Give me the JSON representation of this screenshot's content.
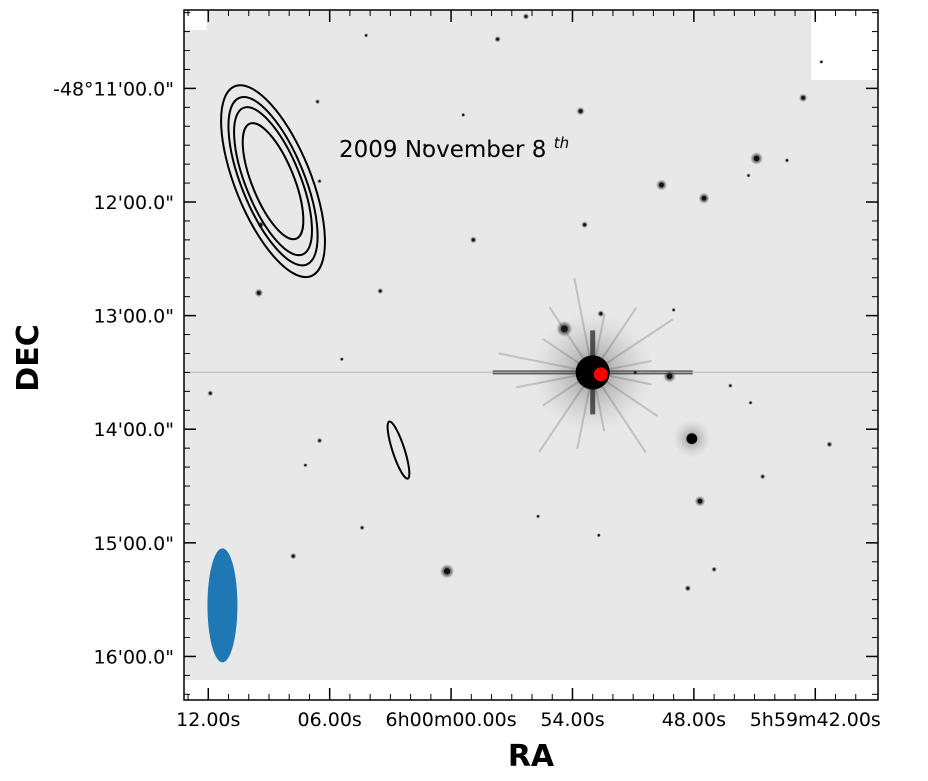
{
  "chart_data": {
    "type": "scatter",
    "title": "",
    "annotation": {
      "text": "2009 November 8",
      "superscript": "th"
    },
    "xlabel": "RA",
    "ylabel": "DEC",
    "x_ticks": [
      "12.00s",
      "06.00s",
      "6h00m00.00s",
      "54.00s",
      "48.00s",
      "5h59m42.00s"
    ],
    "y_ticks": [
      "-48°11'00.0\"",
      "12'00.0\"",
      "13'00.0\"",
      "14'00.0\"",
      "15'00.0\"",
      "16'00.0\""
    ],
    "x_tick_seconds": [
      372,
      366,
      360,
      354,
      348,
      342
    ],
    "y_tick_arcsec": [
      0,
      60,
      120,
      180,
      240,
      300
    ],
    "xlim": [
      373.2,
      338.9
    ],
    "ylim": [
      -41.4,
      323
    ],
    "background": "grayscale optical sky image (inverted)",
    "target_marker": {
      "x": 352.6,
      "y": 151,
      "color": "#ff0000"
    },
    "beam": {
      "x": 371.3,
      "y": 273,
      "color": "#1f77b4"
    },
    "contour_color": "#000000",
    "grid": false
  }
}
